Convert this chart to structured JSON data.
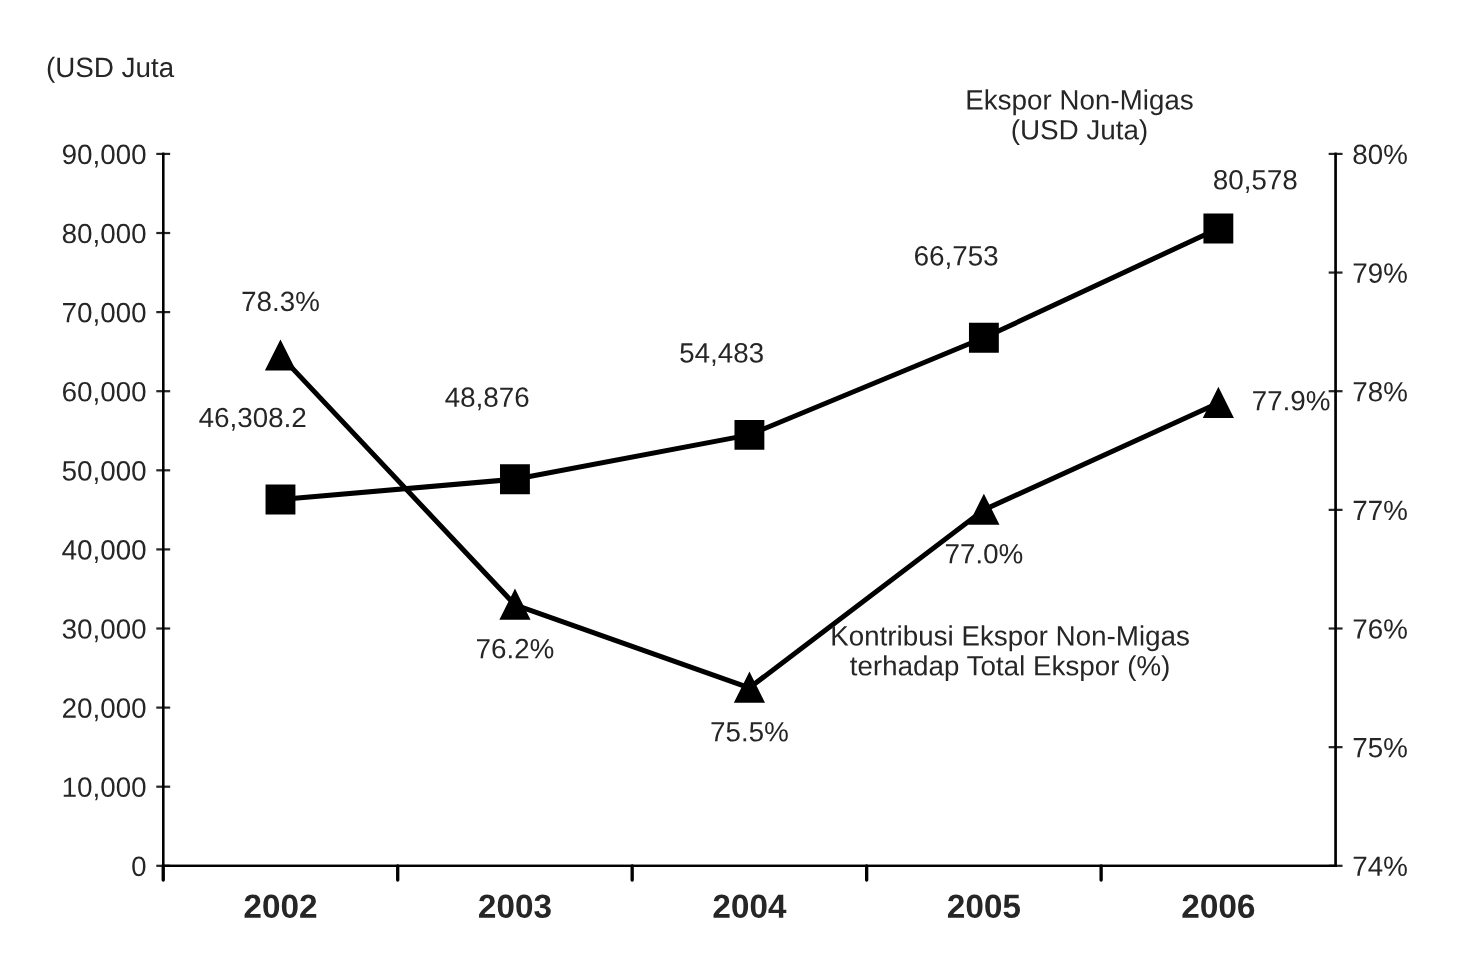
{
  "chart_data": {
    "type": "line",
    "ylabel": "(USD Juta",
    "categories": [
      "2002",
      "2003",
      "2004",
      "2005",
      "2006"
    ],
    "series": [
      {
        "name": "Ekspor Non-Migas\n(USD Juta)",
        "color": "#000000",
        "marker": "square",
        "values": [
          46308.2,
          48876,
          54483,
          66753,
          80578
        ],
        "value_labels": [
          "46,308.2",
          "48,876",
          "54,483",
          "66,753",
          "80,578"
        ]
      },
      {
        "name": "Kontribusi Ekspor Non-Migas\nterhadap Total Ekspor (%)",
        "color": "#000000",
        "marker": "triangle",
        "axis": "y2",
        "values": [
          78.3,
          76.2,
          75.5,
          77.0,
          77.9
        ],
        "value_labels": [
          "78.3%",
          "76.2%",
          "75.5%",
          "77.0%",
          "77.9%"
        ]
      }
    ],
    "ylim": [
      0,
      90000
    ],
    "yticks": [
      0,
      {
        "value": 10000,
        "label": "10,000"
      },
      {
        "value": 20000,
        "label": "20,000"
      },
      {
        "value": 30000,
        "label": "30,000"
      },
      {
        "value": 40000,
        "label": "40,000"
      },
      {
        "value": 50000,
        "label": "50,000"
      },
      {
        "value": 60000,
        "label": "60,000"
      },
      {
        "value": 70000,
        "label": "70,000"
      },
      {
        "value": 80000,
        "label": "80,000"
      },
      {
        "value": 90000,
        "label": "90,000"
      }
    ],
    "y2lim": [
      74,
      80
    ],
    "y2ticks": [
      {
        "value": 74,
        "label": "74%"
      },
      {
        "value": 75,
        "label": "75%"
      },
      {
        "value": 76,
        "label": "76%"
      },
      {
        "value": 77,
        "label": "77%"
      },
      {
        "value": 78,
        "label": "78%"
      },
      {
        "value": 79,
        "label": "79%"
      },
      {
        "value": 80,
        "label": "80%"
      }
    ],
    "grid": false,
    "legend": false,
    "line_style": "solid"
  }
}
